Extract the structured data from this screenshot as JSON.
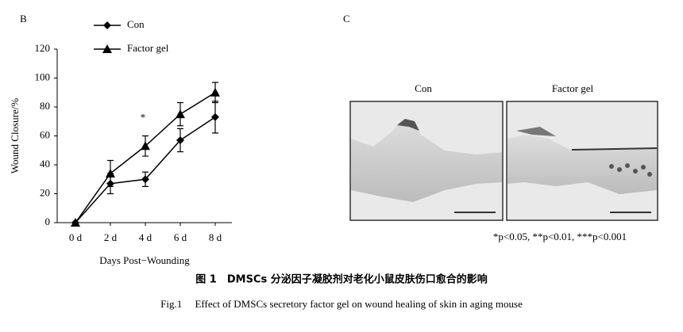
{
  "panel_b": {
    "label": "B"
  },
  "chart_data": {
    "type": "line",
    "x_label": "Days Post−Wounding",
    "y_label": "Wound Closure/%",
    "categories": [
      "0 d",
      "2 d",
      "4 d",
      "6 d",
      "8 d"
    ],
    "series": [
      {
        "name": "Con",
        "color": "#000000",
        "marker": "diamond",
        "values": [
          0,
          27,
          30,
          57,
          73
        ],
        "errors": [
          0,
          7,
          5,
          8,
          11
        ]
      },
      {
        "name": "Factor gel",
        "color": "#000000",
        "marker": "triangle",
        "values": [
          0,
          34,
          53,
          75,
          90
        ],
        "errors": [
          0,
          9,
          7,
          8,
          7
        ]
      }
    ],
    "ylim": [
      0,
      120
    ],
    "yticks": [
      0,
      20,
      40,
      60,
      80,
      100,
      120
    ],
    "annotation": "*",
    "legend": "top-left",
    "grid": false
  },
  "panel_c": {
    "label": "C",
    "images": [
      {
        "label": "Con"
      },
      {
        "label": "Factor gel"
      }
    ],
    "footnote": "*p<0.05, **p<0.01, ***p<0.001"
  },
  "caption": {
    "zh": "图 1　DMSCs 分泌因子凝胶剂对老化小鼠皮肤伤口愈合的影响",
    "en": "Fig.1　 Effect of DMSCs secretory factor gel on wound healing of skin in aging mouse"
  }
}
